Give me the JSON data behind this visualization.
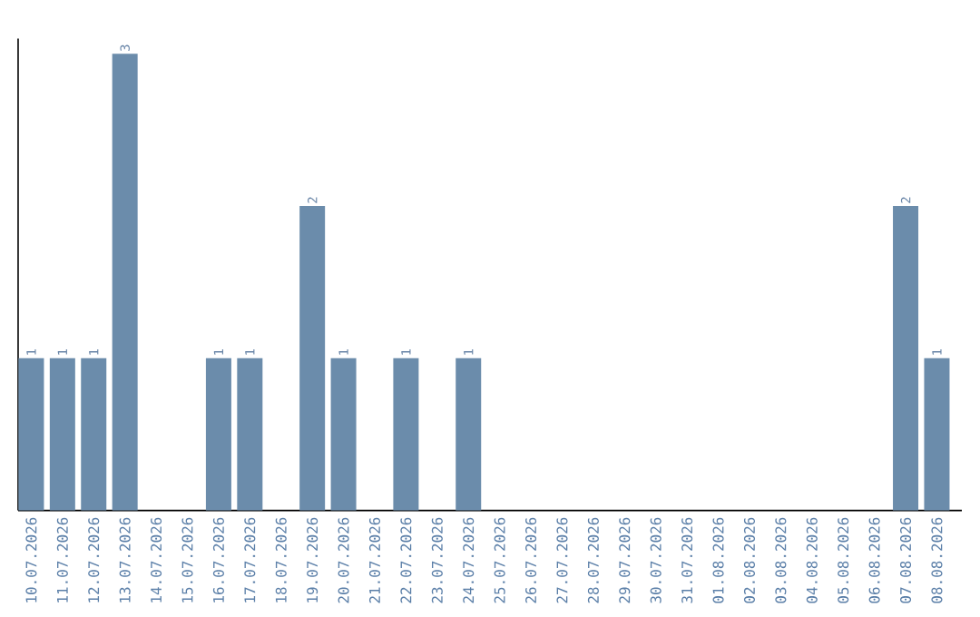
{
  "chart_data": {
    "type": "bar",
    "categories": [
      "10.07.2026",
      "11.07.2026",
      "12.07.2026",
      "13.07.2026",
      "14.07.2026",
      "15.07.2026",
      "16.07.2026",
      "17.07.2026",
      "18.07.2026",
      "19.07.2026",
      "20.07.2026",
      "21.07.2026",
      "22.07.2026",
      "23.07.2026",
      "24.07.2026",
      "25.07.2026",
      "26.07.2026",
      "27.07.2026",
      "28.07.2026",
      "29.07.2026",
      "30.07.2026",
      "31.07.2026",
      "01.08.2026",
      "02.08.2026",
      "03.08.2026",
      "04.08.2026",
      "05.08.2026",
      "06.08.2026",
      "07.08.2026",
      "08.08.2026"
    ],
    "values": [
      1,
      1,
      1,
      3,
      0,
      0,
      1,
      1,
      0,
      2,
      1,
      0,
      1,
      0,
      1,
      0,
      0,
      0,
      0,
      0,
      0,
      0,
      0,
      0,
      0,
      0,
      0,
      0,
      2,
      1
    ],
    "value_labels": [
      "1",
      "1",
      "1",
      "3",
      null,
      null,
      "1",
      "1",
      null,
      "2",
      "1",
      null,
      "1",
      null,
      "1",
      null,
      null,
      null,
      null,
      null,
      null,
      null,
      null,
      null,
      null,
      null,
      null,
      null,
      "2",
      "1"
    ],
    "color": "#6b8cab",
    "ylim": [
      0,
      3.1
    ]
  }
}
